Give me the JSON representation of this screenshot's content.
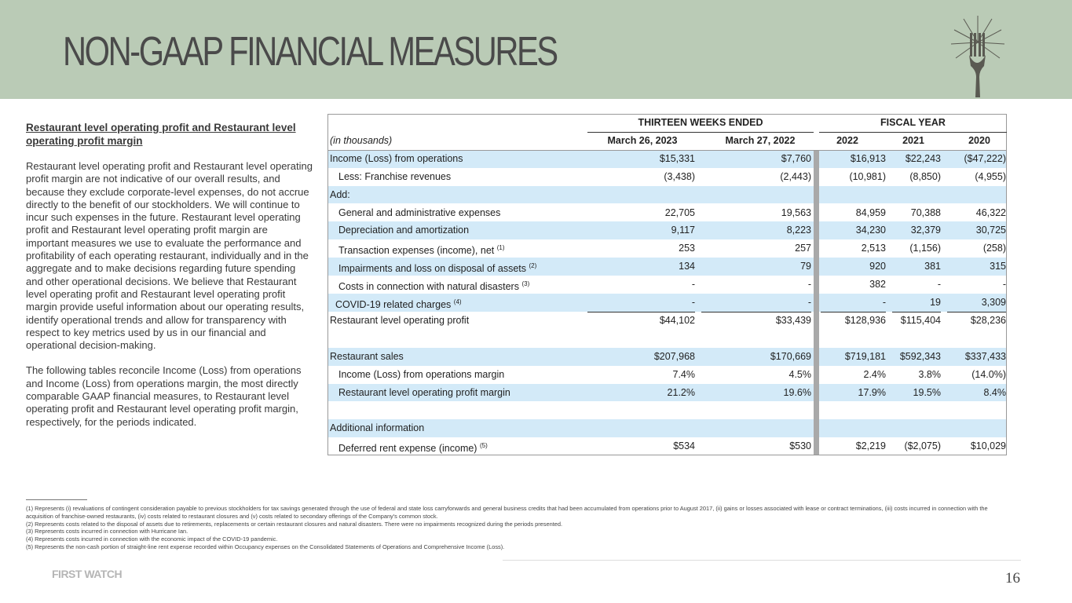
{
  "header": {
    "title": "NON-GAAP FINANCIAL MEASURES"
  },
  "sidebar": {
    "heading": "Restaurant level operating profit and Restaurant level operating profit margin",
    "paragraphs": [
      "Restaurant level operating profit and Restaurant level operating profit margin are not indicative of our overall results, and because they exclude corporate-level expenses, do not accrue directly to the benefit of our stockholders. We will continue to incur such expenses in the future. Restaurant level operating profit and Restaurant level operating profit margin are important measures we use to evaluate the performance and profitability of each operating restaurant, individually and in the aggregate and to make decisions regarding future spending and other operational decisions. We believe that Restaurant level operating profit and Restaurant level operating profit margin provide useful information about our operating results, identify operational trends and allow for transparency with respect to key metrics used by us in our financial and operational decision-making.",
      "The following tables reconcile Income (Loss) from operations and Income (Loss) from operations margin, the most directly comparable GAAP financial measures, to Restaurant level operating profit and Restaurant level operating profit margin, respectively, for the periods indicated."
    ]
  },
  "table": {
    "groups": [
      "THIRTEEN WEEKS ENDED",
      "FISCAL YEAR"
    ],
    "unit": "(in thousands)",
    "columns": [
      "March 26, 2023",
      "March 27, 2022",
      "2022",
      "2021",
      "2020"
    ],
    "rows": [
      {
        "label": "Income (Loss) from operations",
        "cells": [
          "$15,331",
          "$7,760",
          "$16,913",
          "$22,243",
          "($47,222)"
        ]
      },
      {
        "label": "Less: Franchise revenues",
        "cells": [
          "(3,438)",
          "(2,443)",
          "(10,981)",
          "(8,850)",
          "(4,955)"
        ]
      },
      {
        "label": "Add:"
      },
      {
        "label": "General and administrative expenses",
        "cells": [
          "22,705",
          "19,563",
          "84,959",
          "70,388",
          "46,322"
        ]
      },
      {
        "label": "Depreciation and amortization",
        "cells": [
          "9,117",
          "8,223",
          "34,230",
          "32,379",
          "30,725"
        ]
      },
      {
        "label": "Transaction expenses (income), net",
        "note": "(1)",
        "cells": [
          "253",
          "257",
          "2,513",
          "(1,156)",
          "(258)"
        ]
      },
      {
        "label": "Impairments and loss on disposal of assets",
        "note": "(2)",
        "cells": [
          "134",
          "79",
          "920",
          "381",
          "315"
        ]
      },
      {
        "label": "Costs in connection with natural disasters",
        "note": "(3)",
        "cells": [
          "-",
          "-",
          "382",
          "-",
          "-"
        ]
      },
      {
        "label": "COVID-19 related charges",
        "note": "(4)",
        "cells": [
          "-",
          "-",
          "-",
          "19",
          "3,309"
        ]
      },
      {
        "label": "Restaurant level operating profit",
        "cells": [
          "$44,102",
          "$33,439",
          "$128,936",
          "$115,404",
          "$28,236"
        ]
      },
      {
        "label": "Restaurant sales",
        "cells": [
          "$207,968",
          "$170,669",
          "$719,181",
          "$592,343",
          "$337,433"
        ]
      },
      {
        "label": "Income (Loss) from operations margin",
        "cells": [
          "7.4%",
          "4.5%",
          "2.4%",
          "3.8%",
          "(14.0%)"
        ]
      },
      {
        "label": "Restaurant level operating profit margin",
        "cells": [
          "21.2%",
          "19.6%",
          "17.9%",
          "19.5%",
          "8.4%"
        ]
      },
      {
        "label": "Additional information"
      },
      {
        "label": "Deferred rent expense (income)",
        "note": "(5)",
        "cells": [
          "$534",
          "$530",
          "$2,219",
          "($2,075)",
          "$10,029"
        ]
      }
    ]
  },
  "footnotes": [
    "(1) Represents (i) revaluations of contingent consideration payable to previous stockholders for tax savings generated through the use of federal and state loss carryforwards and general business credits that had been accumulated from operations prior to August 2017, (ii) gains or losses associated with lease or contract terminations, (iii) costs incurred in connection with the acquisition of franchise-owned restaurants, (iv) costs related to restaurant closures and (v) costs related to secondary offerings of the Company's common stock.",
    "(2) Represents costs related to the disposal of assets due to retirements, replacements or certain restaurant closures and natural disasters. There were no impairments recognized during the periods presented.",
    "(3) Represents costs incurred in connection with Hurricane Ian.",
    "(4) Represents costs incurred in connection with the economic impact of the COVID-19 pandemic.",
    "(5) Represents the non-cash portion of straight-line rent expense recorded within Occupancy expenses on the Consolidated Statements of Operations and Comprehensive Income (Loss)."
  ],
  "footer": {
    "brand": "FIRST WATCH",
    "page": "16"
  }
}
